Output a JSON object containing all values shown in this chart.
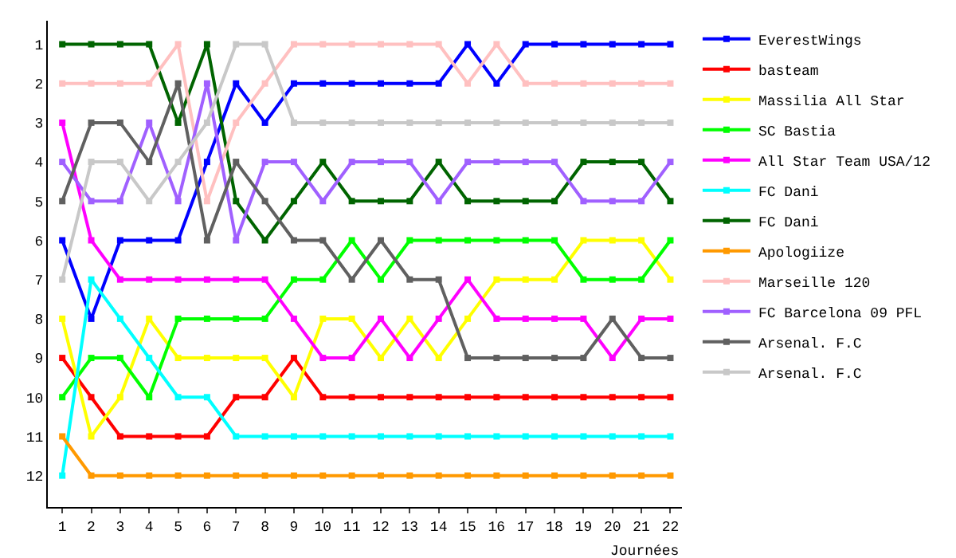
{
  "chart_data": {
    "type": "line",
    "xlabel": "Journées",
    "x": [
      1,
      2,
      3,
      4,
      5,
      6,
      7,
      8,
      9,
      10,
      11,
      12,
      13,
      14,
      15,
      16,
      17,
      18,
      19,
      20,
      21,
      22
    ],
    "xlim": [
      0.5,
      22.4
    ],
    "xticks": [
      1,
      2,
      3,
      4,
      5,
      6,
      7,
      8,
      9,
      10,
      11,
      12,
      13,
      14,
      15,
      16,
      17,
      18,
      19,
      20,
      21,
      22
    ],
    "ylim": [
      12.8,
      0.4
    ],
    "yticks": [
      1,
      2,
      3,
      4,
      5,
      6,
      7,
      8,
      9,
      10,
      11,
      12
    ],
    "grid": false,
    "legend": "right",
    "marker": "square",
    "line_style": "solid",
    "series": [
      {
        "name": "EverestWings",
        "color": "#0000ff",
        "values": [
          6,
          8,
          6,
          6,
          6,
          4,
          2,
          3,
          2,
          2,
          2,
          2,
          2,
          2,
          1,
          2,
          1,
          1,
          1,
          1,
          1,
          1
        ]
      },
      {
        "name": "basteam",
        "color": "#ff0000",
        "values": [
          9,
          10,
          11,
          11,
          11,
          11,
          10,
          10,
          9,
          10,
          10,
          10,
          10,
          10,
          10,
          10,
          10,
          10,
          10,
          10,
          10,
          10
        ]
      },
      {
        "name": "Massilia All Star",
        "color": "#ffff00",
        "values": [
          8,
          11,
          10,
          8,
          9,
          9,
          9,
          9,
          10,
          8,
          8,
          9,
          8,
          9,
          8,
          7,
          7,
          7,
          6,
          6,
          6,
          7
        ]
      },
      {
        "name": "SC Bastia",
        "color": "#00ff00",
        "values": [
          10,
          9,
          9,
          10,
          8,
          8,
          8,
          8,
          7,
          7,
          6,
          7,
          6,
          6,
          6,
          6,
          6,
          6,
          7,
          7,
          7,
          6
        ]
      },
      {
        "name": "All Star Team USA/12",
        "color": "#ff00ff",
        "values": [
          3,
          6,
          7,
          7,
          7,
          7,
          7,
          7,
          8,
          9,
          9,
          8,
          9,
          8,
          7,
          8,
          8,
          8,
          8,
          9,
          8,
          8
        ]
      },
      {
        "name": "FC Dani",
        "color": "#00ffff",
        "values": [
          12,
          7,
          8,
          9,
          10,
          10,
          11,
          11,
          11,
          11,
          11,
          11,
          11,
          11,
          11,
          11,
          11,
          11,
          11,
          11,
          11,
          11
        ]
      },
      {
        "name": "FC Dani",
        "color": "#006400",
        "values": [
          1,
          1,
          1,
          1,
          3,
          1,
          5,
          6,
          5,
          4,
          5,
          5,
          5,
          4,
          5,
          5,
          5,
          5,
          4,
          4,
          4,
          5
        ]
      },
      {
        "name": "Apologiize",
        "color": "#ff9900",
        "values": [
          11,
          12,
          12,
          12,
          12,
          12,
          12,
          12,
          12,
          12,
          12,
          12,
          12,
          12,
          12,
          12,
          12,
          12,
          12,
          12,
          12,
          12
        ]
      },
      {
        "name": "Marseille 120",
        "color": "#ffc0c0",
        "values": [
          2,
          2,
          2,
          2,
          1,
          5,
          3,
          2,
          1,
          1,
          1,
          1,
          1,
          1,
          2,
          1,
          2,
          2,
          2,
          2,
          2,
          2
        ]
      },
      {
        "name": "FC Barcelona 09 PFL",
        "color": "#a060ff",
        "values": [
          4,
          5,
          5,
          3,
          5,
          2,
          6,
          4,
          4,
          5,
          4,
          4,
          4,
          5,
          4,
          4,
          4,
          4,
          5,
          5,
          5,
          4
        ]
      },
      {
        "name": "Arsenal. F.C",
        "color": "#606060",
        "values": [
          5,
          3,
          3,
          4,
          2,
          6,
          4,
          5,
          6,
          6,
          7,
          6,
          7,
          7,
          9,
          9,
          9,
          9,
          9,
          8,
          9,
          9
        ]
      },
      {
        "name": "Arsenal. F.C",
        "color": "#c8c8c8",
        "values": [
          7,
          4,
          4,
          5,
          4,
          3,
          1,
          1,
          3,
          3,
          3,
          3,
          3,
          3,
          3,
          3,
          3,
          3,
          3,
          3,
          3,
          3
        ]
      }
    ]
  }
}
